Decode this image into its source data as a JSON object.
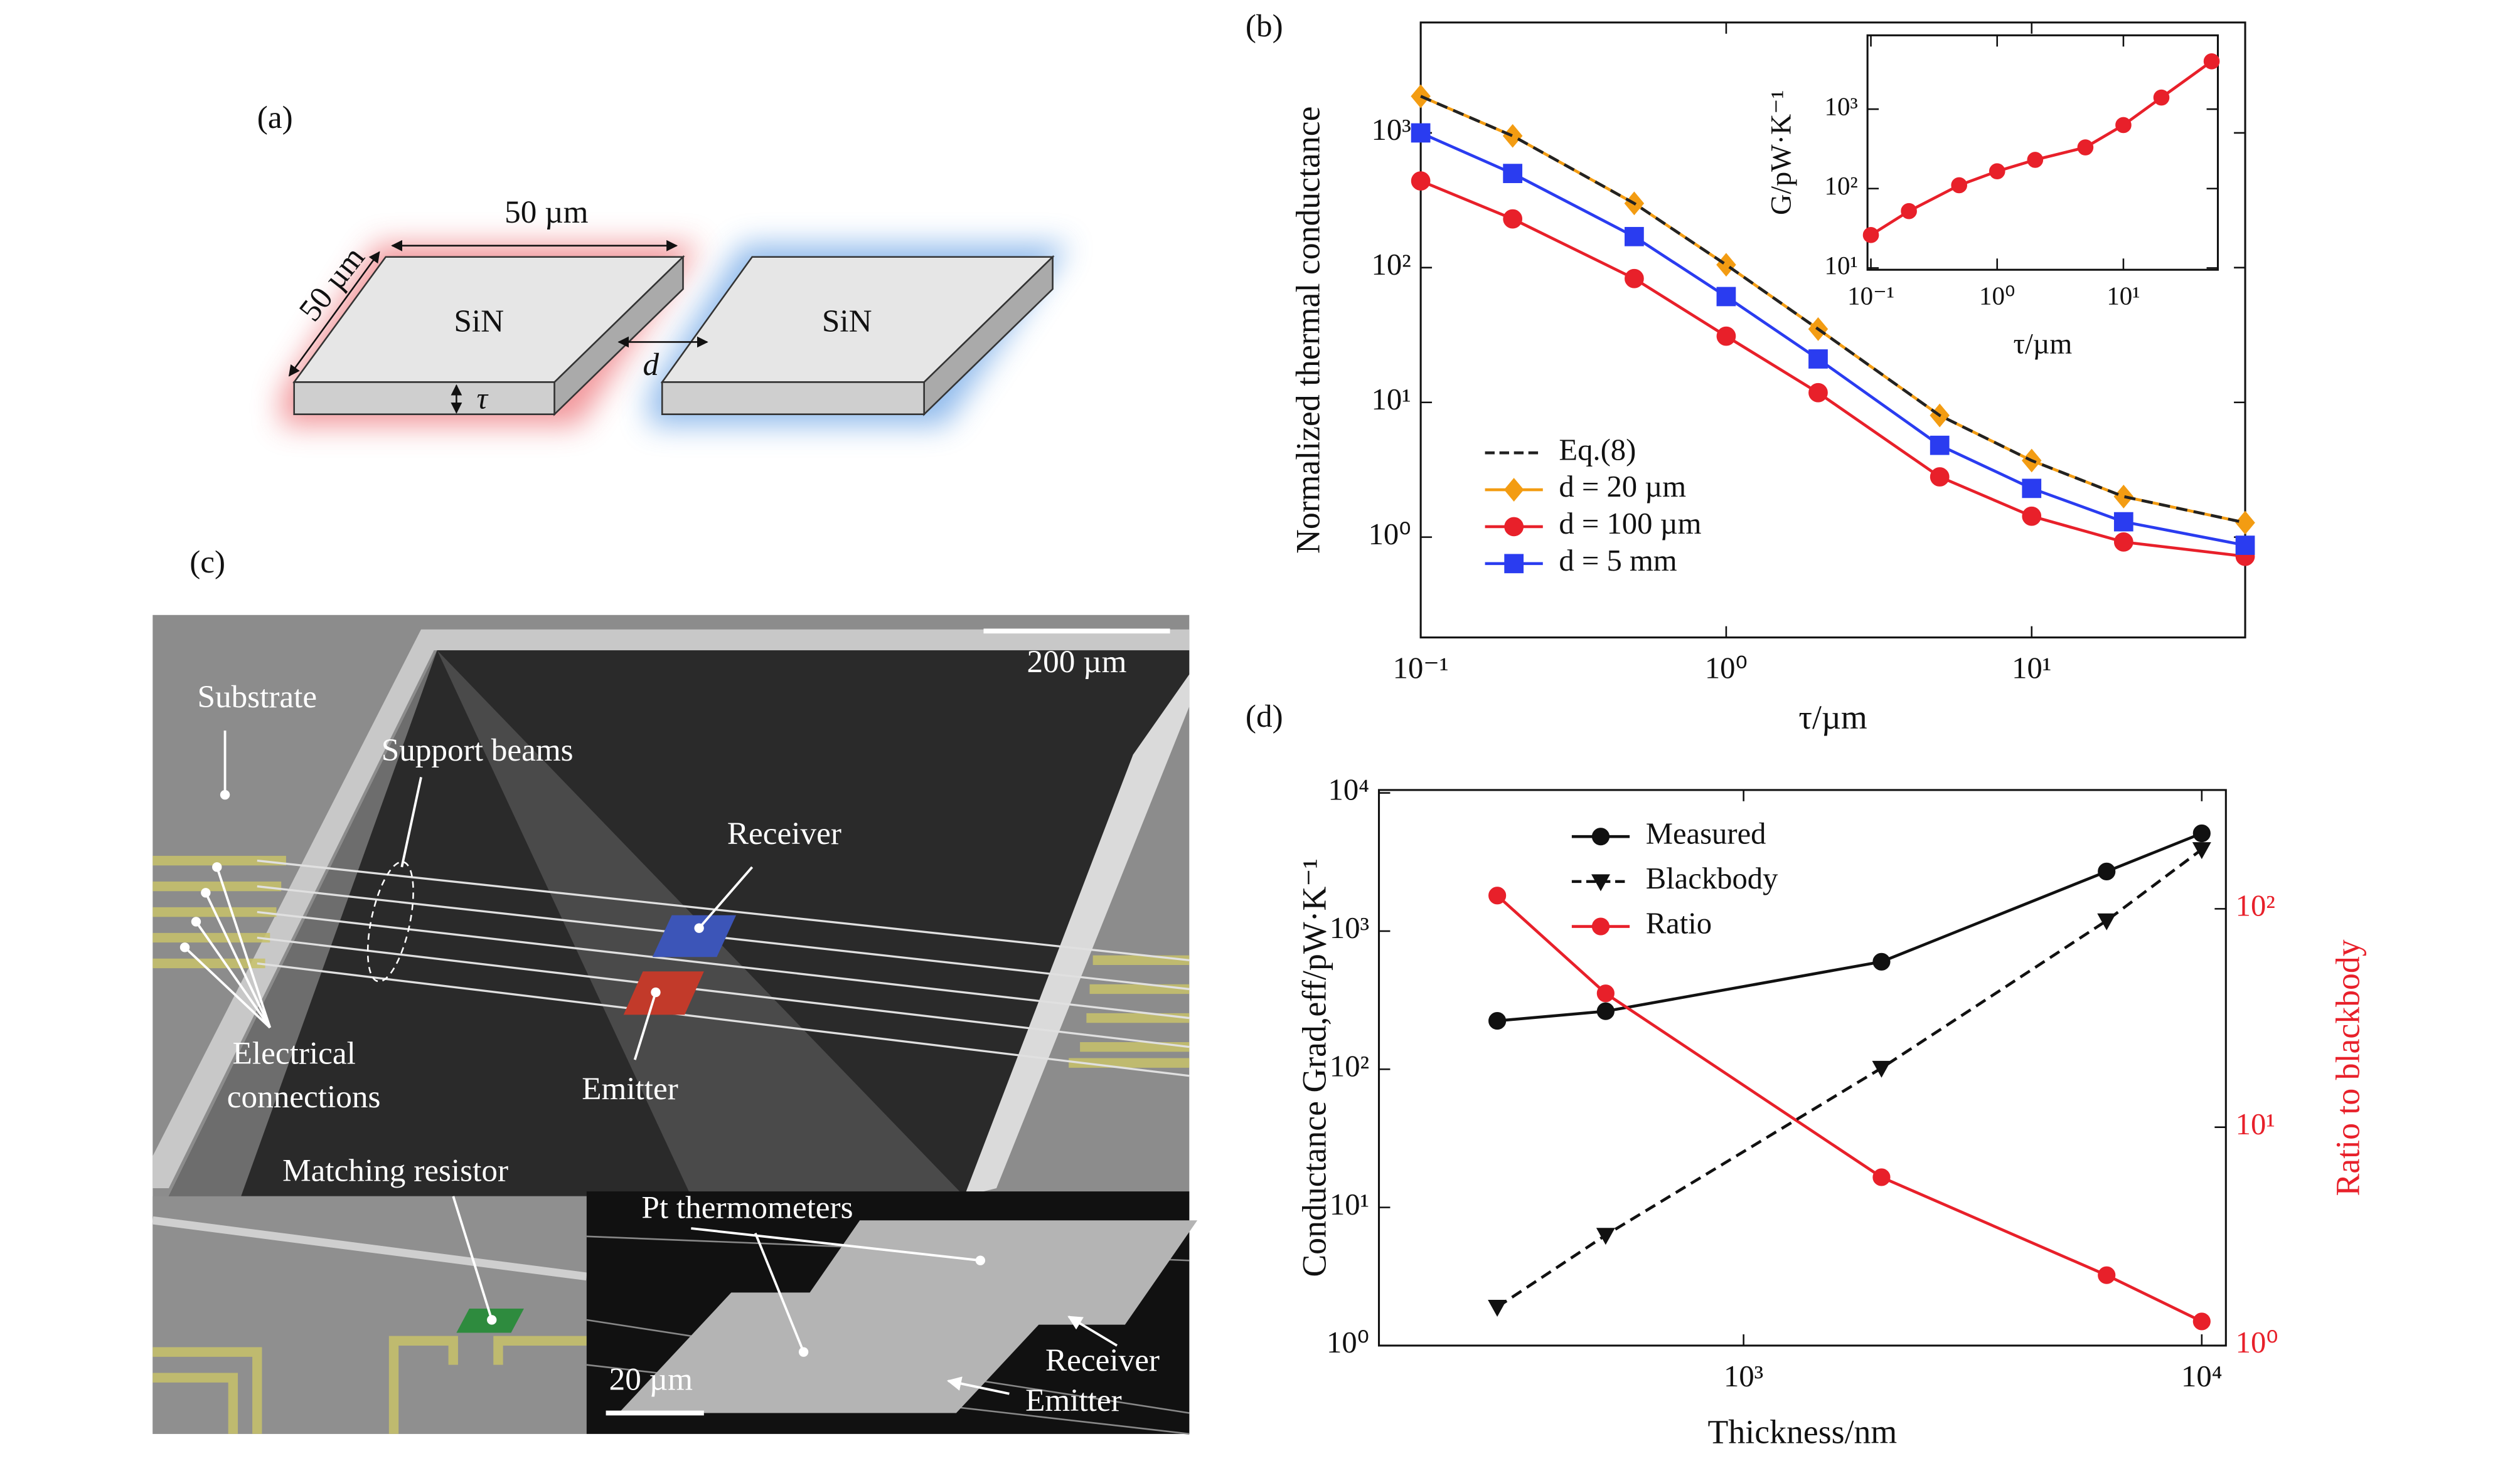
{
  "panel_labels": [
    "(a)",
    "(b)",
    "(c)",
    "(d)"
  ],
  "panel_a": {
    "width_label": "50 µm",
    "length_label": "50 µm",
    "slabs": [
      "SiN",
      "SiN"
    ],
    "gap_label": "d",
    "thickness_label": "τ"
  },
  "panel_c": {
    "scale_bar": "200 µm",
    "substrate": "Substrate",
    "support_beams": "Support beams",
    "receiver": "Receiver",
    "emitter": "Emitter",
    "electrical_connections": [
      "Electrical",
      "connections"
    ],
    "matching_resistor": "Matching resistor",
    "inset": {
      "pt_thermometers": "Pt thermometers",
      "receiver": "Receiver",
      "emitter": "Emitter",
      "scale_bar": "20 µm"
    }
  },
  "chart_data": [
    {
      "type": "line",
      "xscale": "log",
      "yscale": "log",
      "x_label": "τ/µm",
      "y_label": "Normalized thermal conductance",
      "legend": "lower left",
      "x": [
        0.1,
        0.2,
        0.5,
        1,
        2,
        5,
        10,
        20,
        50
      ],
      "xlim": [
        0.1,
        50
      ],
      "xticks": [
        {
          "value": 0.1,
          "label": "10⁻¹"
        },
        {
          "value": 1,
          "label": "10⁰"
        },
        {
          "value": 10,
          "label": "10¹"
        }
      ],
      "ylim": [
        0.18,
        6600
      ],
      "yticks": [
        {
          "value": 1,
          "label": "10⁰"
        },
        {
          "value": 10,
          "label": "10¹"
        },
        {
          "value": 100,
          "label": "10²"
        },
        {
          "value": 1000,
          "label": "10³"
        }
      ],
      "series": [
        {
          "name": "Eq.(8)",
          "color": "#222222",
          "linestyle": "dashed",
          "values": [
            1870,
            950,
            300,
            105,
            35,
            8.0,
            3.7,
            2.0,
            1.28
          ]
        },
        {
          "name": "d = 20 µm",
          "color": "#f39c12",
          "marker": "diamond",
          "linestyle": "solid",
          "values": [
            1870,
            950,
            300,
            105,
            35,
            8.0,
            3.7,
            2.0,
            1.28
          ]
        },
        {
          "name": "d = 100 µm",
          "color": "#e8202a",
          "marker": "circle",
          "linestyle": "solid",
          "values": [
            440,
            230,
            83,
            31,
            11.8,
            2.8,
            1.43,
            0.92,
            0.72
          ]
        },
        {
          "name": "d = 5 mm",
          "color": "#2a3cf0",
          "marker": "square",
          "linestyle": "solid",
          "values": [
            1000,
            500,
            170,
            61,
            21,
            4.8,
            2.3,
            1.3,
            0.87
          ]
        }
      ]
    },
    {
      "type": "line",
      "xscale": "log",
      "yscale": "log",
      "x_label": "τ/µm",
      "y_label": "G/pW·K⁻¹",
      "x": [
        0.1,
        0.2,
        0.5,
        1,
        2,
        5,
        10,
        20,
        50
      ],
      "xlim": [
        0.094,
        56
      ],
      "xticks": [
        {
          "value": 0.1,
          "label": "10⁻¹"
        },
        {
          "value": 1,
          "label": "10⁰"
        },
        {
          "value": 10,
          "label": "10¹"
        }
      ],
      "ylim": [
        9.5,
        8500
      ],
      "yticks": [
        {
          "value": 10,
          "label": "10¹"
        },
        {
          "value": 100,
          "label": "10²"
        },
        {
          "value": 1000,
          "label": "10³"
        }
      ],
      "series": [
        {
          "color": "#e8202a",
          "marker": "circle",
          "linestyle": "solid",
          "values": [
            26,
            52,
            110,
            165,
            230,
            330,
            630,
            1400,
            4000
          ]
        }
      ]
    },
    {
      "type": "line",
      "xscale": "log",
      "yscale": "log",
      "x_label": "Thickness/nm",
      "y_label": "Conductance Grad,eff/pW·K⁻¹",
      "y2_label": "Ratio to blackbody",
      "y2_color": "#e8202a",
      "legend": "upper center",
      "x": [
        290,
        500,
        2000,
        6200,
        10000
      ],
      "xlim": [
        160,
        11290
      ],
      "xticks": [
        {
          "value": 1000,
          "label": "10³"
        },
        {
          "value": 10000,
          "label": "10⁴"
        }
      ],
      "ylim": [
        1,
        10500
      ],
      "yticks": [
        {
          "value": 1,
          "label": "10⁰"
        },
        {
          "value": 10,
          "label": "10¹"
        },
        {
          "value": 100,
          "label": "10²"
        },
        {
          "value": 1000,
          "label": "10³"
        },
        {
          "value": 10000,
          "label": "10⁴"
        }
      ],
      "y2lim": [
        1,
        350
      ],
      "y2ticks": [
        {
          "value": 1,
          "label": "10⁰"
        },
        {
          "value": 10,
          "label": "10¹"
        },
        {
          "value": 100,
          "label": "10²"
        }
      ],
      "series": [
        {
          "name": "Measured",
          "color": "#111111",
          "marker": "circle",
          "linestyle": "solid",
          "values": [
            224,
            263,
            600,
            2700,
            5100
          ]
        },
        {
          "name": "Blackbody",
          "color": "#111111",
          "marker": "triangle-down",
          "linestyle": "dashed",
          "values": [
            1.9,
            6.3,
            102,
            1190,
            3900
          ]
        },
        {
          "name": "Ratio",
          "color": "#e8202a",
          "marker": "circle",
          "linestyle": "solid",
          "axis": "y2",
          "values": [
            115,
            41,
            5.9,
            2.1,
            1.29
          ]
        }
      ]
    }
  ]
}
